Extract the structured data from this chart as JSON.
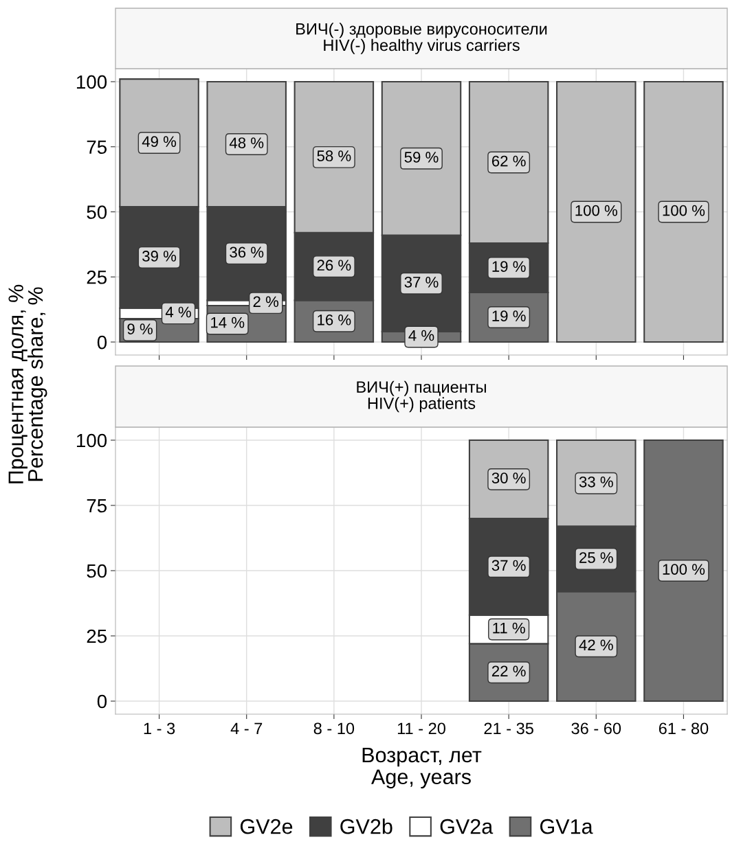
{
  "chart_data": [
    {
      "type": "bar",
      "stacked": true,
      "title": "ВИЧ(-) здоровые вирусоносители\nHIV(-) healthy virus carriers",
      "ylabel": "Процентная доля, %\nPercentage share, %",
      "categories": [
        "1 - 3",
        "4 - 7",
        "8 - 10",
        "11 - 20",
        "21 - 35",
        "36 - 60",
        "61 - 80"
      ],
      "ylim": [
        -5,
        105
      ],
      "yticks": [
        0,
        25,
        50,
        75,
        100
      ],
      "grid": true,
      "legend": "bottom",
      "tick_labels": "y",
      "series": [
        {
          "name": "GV1a",
          "color": "#707070",
          "values": [
            9,
            14,
            16,
            4,
            19,
            null,
            null
          ],
          "value_labels": [
            "9 %",
            "14 %",
            "16 %",
            "4 %",
            "19 %",
            null,
            null
          ]
        },
        {
          "name": "GV2a",
          "color": "#ffffff",
          "values": [
            4,
            2,
            null,
            null,
            null,
            null,
            null
          ],
          "value_labels": [
            "4 %",
            "2 %",
            null,
            null,
            null,
            null,
            null
          ]
        },
        {
          "name": "GV2b",
          "color": "#404040",
          "values": [
            39,
            36,
            26,
            37,
            19,
            null,
            null
          ],
          "value_labels": [
            "39 %",
            "36 %",
            "26 %",
            "37 %",
            "19 %",
            null,
            null
          ]
        },
        {
          "name": "GV2e",
          "color": "#bdbdbd",
          "values": [
            49,
            48,
            58,
            59,
            62,
            100,
            100
          ],
          "value_labels": [
            "49 %",
            "48 %",
            "58 %",
            "59 %",
            "62 %",
            "100 %",
            "100 %"
          ]
        }
      ]
    },
    {
      "type": "bar",
      "stacked": true,
      "title": "ВИЧ(+) пациенты\nHIV(+) patients",
      "xlabel": "Возраст, лет\nAge, years",
      "categories": [
        "1 - 3",
        "4 - 7",
        "8 - 10",
        "11 - 20",
        "21 - 35",
        "36 - 60",
        "61 - 80"
      ],
      "ylim": [
        -5,
        105
      ],
      "yticks": [
        0,
        25,
        50,
        75,
        100
      ],
      "grid": true,
      "series": [
        {
          "name": "GV1a",
          "color": "#707070",
          "values": [
            null,
            null,
            null,
            null,
            22,
            42,
            100
          ],
          "value_labels": [
            null,
            null,
            null,
            null,
            "22 %",
            "42 %",
            "100 %"
          ]
        },
        {
          "name": "GV2a",
          "color": "#ffffff",
          "values": [
            null,
            null,
            null,
            null,
            11,
            null,
            null
          ],
          "value_labels": [
            null,
            null,
            null,
            null,
            "11 %",
            null,
            null
          ]
        },
        {
          "name": "GV2b",
          "color": "#404040",
          "values": [
            null,
            null,
            null,
            null,
            37,
            25,
            null
          ],
          "value_labels": [
            null,
            null,
            null,
            null,
            "37 %",
            "25 %",
            null
          ]
        },
        {
          "name": "GV2e",
          "color": "#bdbdbd",
          "values": [
            null,
            null,
            null,
            null,
            30,
            33,
            null
          ],
          "value_labels": [
            null,
            null,
            null,
            null,
            "30 %",
            "33 %",
            null
          ]
        }
      ]
    }
  ]
}
